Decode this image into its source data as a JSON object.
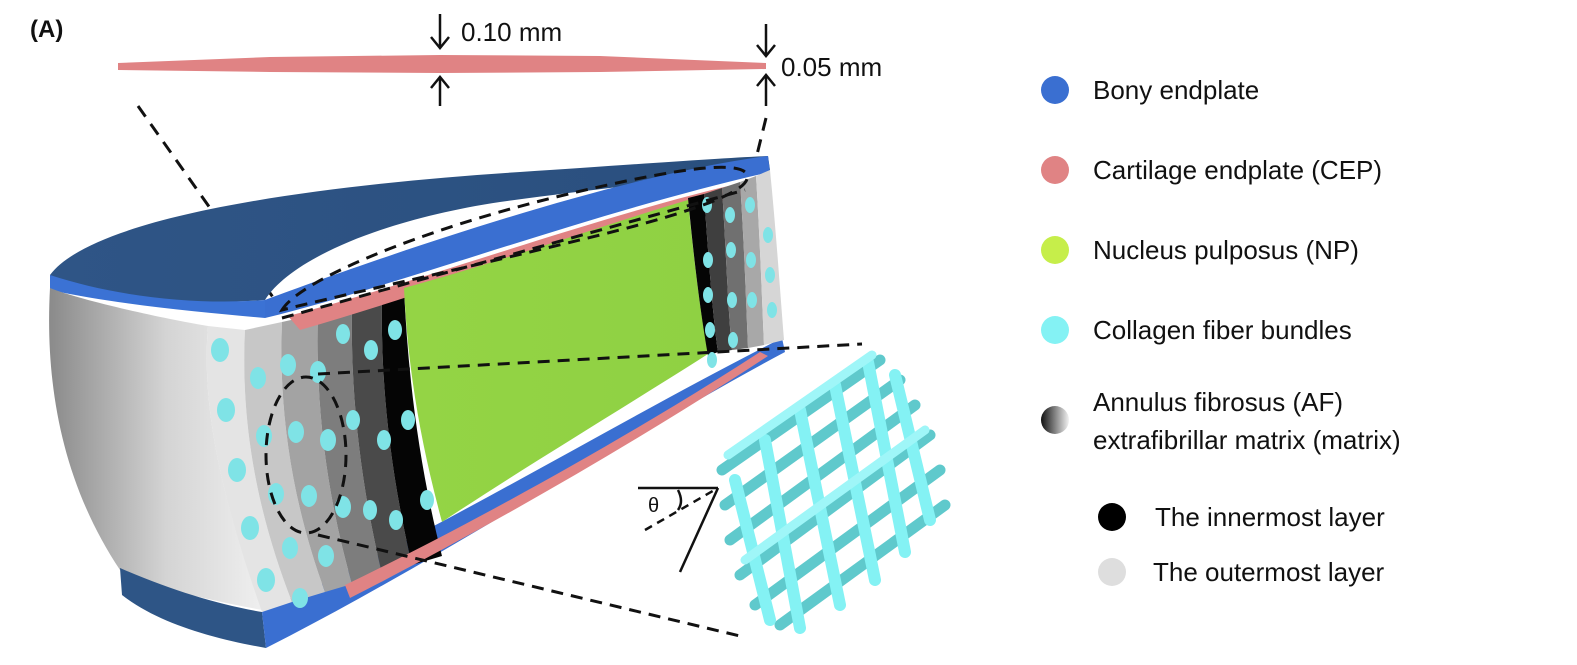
{
  "figure": {
    "panel_label": "(A)",
    "dimensions": {
      "thick": "0.10 mm",
      "thin": "0.05 mm"
    },
    "angle_symbol": "θ"
  },
  "colors": {
    "bony_endplate": "#3a6fd1",
    "bony_endplate_top": "#2e5586",
    "cep": "#e08384",
    "np": "#94d445",
    "collagen": "#7fe3e6",
    "innermost": "#000000",
    "outermost": "#dedede"
  },
  "legend": [
    {
      "key": "bony",
      "label": "Bony endplate",
      "color": "#3a6fd1",
      "swatch": "dot"
    },
    {
      "key": "cep",
      "label": "Cartilage endplate (CEP)",
      "color": "#e08384",
      "swatch": "dot"
    },
    {
      "key": "np",
      "label": "Nucleus pulposus (NP)",
      "color": "#c6ee4a",
      "swatch": "dot"
    },
    {
      "key": "collagen",
      "label": "Collagen fiber bundles",
      "color": "#84f2f4",
      "swatch": "dot"
    },
    {
      "key": "matrix",
      "label_line1": "Annulus fibrosus (AF)",
      "label_line2": "extrafibrillar matrix (matrix)",
      "swatch": "gradient"
    },
    {
      "key": "innermost",
      "label": "The innermost layer",
      "color": "#000000",
      "swatch": "dot"
    },
    {
      "key": "outermost",
      "label": "The outermost layer",
      "color": "#dedede",
      "swatch": "dot"
    }
  ]
}
